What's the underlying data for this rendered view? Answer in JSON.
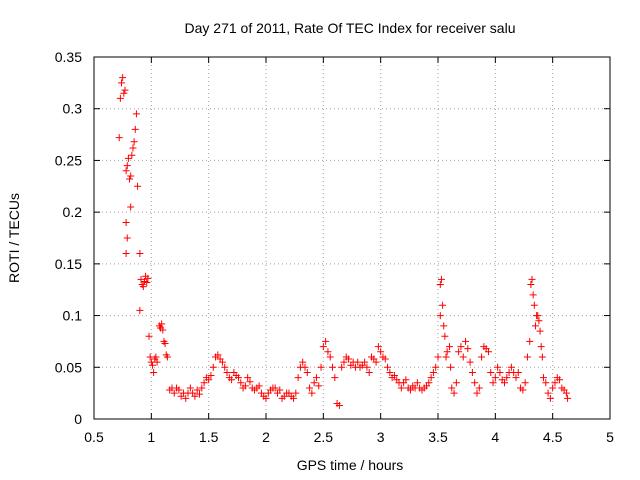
{
  "chart_data": {
    "type": "scatter",
    "title": "Day 271 of 2011, Rate Of TEC Index for receiver salu",
    "xlabel": "GPS time / hours",
    "ylabel": "ROTI / TECUs",
    "xlim": [
      0.5,
      5
    ],
    "ylim": [
      0,
      0.35
    ],
    "x_ticks": [
      0.5,
      1,
      1.5,
      2,
      2.5,
      3,
      3.5,
      4,
      4.5,
      5
    ],
    "x_tick_labels": [
      "0.5",
      "1",
      "1.5",
      "2",
      "2.5",
      "3",
      "3.5",
      "4",
      "4.5",
      "5"
    ],
    "y_ticks": [
      0,
      0.05,
      0.1,
      0.15,
      0.2,
      0.25,
      0.3,
      0.35
    ],
    "y_tick_labels": [
      "0",
      "0.05",
      "0.1",
      "0.15",
      "0.2",
      "0.25",
      "0.3",
      "0.35"
    ],
    "grid": true,
    "marker": "plus",
    "marker_color": "#ff0000",
    "series": [
      {
        "name": "ROTI",
        "points": [
          [
            0.72,
            0.272
          ],
          [
            0.73,
            0.31
          ],
          [
            0.74,
            0.325
          ],
          [
            0.75,
            0.33
          ],
          [
            0.76,
            0.315
          ],
          [
            0.77,
            0.318
          ],
          [
            0.78,
            0.24
          ],
          [
            0.79,
            0.245
          ],
          [
            0.8,
            0.252
          ],
          [
            0.81,
            0.232
          ],
          [
            0.82,
            0.235
          ],
          [
            0.83,
            0.255
          ],
          [
            0.84,
            0.262
          ],
          [
            0.85,
            0.268
          ],
          [
            0.86,
            0.28
          ],
          [
            0.87,
            0.295
          ],
          [
            0.88,
            0.225
          ],
          [
            0.78,
            0.19
          ],
          [
            0.79,
            0.175
          ],
          [
            0.82,
            0.205
          ],
          [
            0.78,
            0.16
          ],
          [
            0.9,
            0.16
          ],
          [
            0.9,
            0.105
          ],
          [
            0.91,
            0.135
          ],
          [
            0.92,
            0.13
          ],
          [
            0.93,
            0.128
          ],
          [
            0.94,
            0.133
          ],
          [
            0.95,
            0.138
          ],
          [
            0.96,
            0.132
          ],
          [
            0.97,
            0.136
          ],
          [
            0.98,
            0.08
          ],
          [
            0.99,
            0.06
          ],
          [
            1.0,
            0.055
          ],
          [
            1.01,
            0.052
          ],
          [
            1.02,
            0.045
          ],
          [
            1.03,
            0.058
          ],
          [
            1.04,
            0.06
          ],
          [
            1.05,
            0.055
          ],
          [
            1.07,
            0.09
          ],
          [
            1.08,
            0.088
          ],
          [
            1.09,
            0.092
          ],
          [
            1.1,
            0.086
          ],
          [
            1.11,
            0.075
          ],
          [
            1.12,
            0.073
          ],
          [
            1.13,
            0.062
          ],
          [
            1.14,
            0.06
          ],
          [
            1.16,
            0.028
          ],
          [
            1.18,
            0.03
          ],
          [
            1.2,
            0.025
          ],
          [
            1.22,
            0.03
          ],
          [
            1.24,
            0.028
          ],
          [
            1.26,
            0.022
          ],
          [
            1.28,
            0.025
          ],
          [
            1.3,
            0.02
          ],
          [
            1.32,
            0.025
          ],
          [
            1.34,
            0.03
          ],
          [
            1.36,
            0.025
          ],
          [
            1.38,
            0.022
          ],
          [
            1.4,
            0.028
          ],
          [
            1.42,
            0.024
          ],
          [
            1.44,
            0.03
          ],
          [
            1.46,
            0.035
          ],
          [
            1.48,
            0.04
          ],
          [
            1.5,
            0.038
          ],
          [
            1.52,
            0.042
          ],
          [
            1.54,
            0.05
          ],
          [
            1.56,
            0.06
          ],
          [
            1.58,
            0.062
          ],
          [
            1.6,
            0.058
          ],
          [
            1.62,
            0.055
          ],
          [
            1.64,
            0.05
          ],
          [
            1.66,
            0.045
          ],
          [
            1.68,
            0.04
          ],
          [
            1.7,
            0.038
          ],
          [
            1.72,
            0.045
          ],
          [
            1.74,
            0.042
          ],
          [
            1.76,
            0.04
          ],
          [
            1.78,
            0.035
          ],
          [
            1.8,
            0.03
          ],
          [
            1.82,
            0.032
          ],
          [
            1.84,
            0.04
          ],
          [
            1.86,
            0.036
          ],
          [
            1.88,
            0.03
          ],
          [
            1.9,
            0.028
          ],
          [
            1.92,
            0.03
          ],
          [
            1.94,
            0.032
          ],
          [
            1.96,
            0.025
          ],
          [
            1.98,
            0.022
          ],
          [
            2.0,
            0.02
          ],
          [
            2.02,
            0.025
          ],
          [
            2.04,
            0.028
          ],
          [
            2.06,
            0.03
          ],
          [
            2.08,
            0.03
          ],
          [
            2.1,
            0.025
          ],
          [
            2.12,
            0.028
          ],
          [
            2.14,
            0.02
          ],
          [
            2.16,
            0.022
          ],
          [
            2.18,
            0.025
          ],
          [
            2.2,
            0.025
          ],
          [
            2.22,
            0.022
          ],
          [
            2.24,
            0.02
          ],
          [
            2.26,
            0.025
          ],
          [
            2.28,
            0.04
          ],
          [
            2.3,
            0.05
          ],
          [
            2.32,
            0.055
          ],
          [
            2.34,
            0.05
          ],
          [
            2.36,
            0.045
          ],
          [
            2.38,
            0.03
          ],
          [
            2.4,
            0.025
          ],
          [
            2.42,
            0.035
          ],
          [
            2.44,
            0.04
          ],
          [
            2.46,
            0.032
          ],
          [
            2.48,
            0.05
          ],
          [
            2.5,
            0.07
          ],
          [
            2.52,
            0.075
          ],
          [
            2.54,
            0.065
          ],
          [
            2.56,
            0.06
          ],
          [
            2.58,
            0.05
          ],
          [
            2.6,
            0.04
          ],
          [
            2.62,
            0.015
          ],
          [
            2.64,
            0.013
          ],
          [
            2.66,
            0.05
          ],
          [
            2.68,
            0.055
          ],
          [
            2.7,
            0.06
          ],
          [
            2.72,
            0.058
          ],
          [
            2.74,
            0.052
          ],
          [
            2.76,
            0.055
          ],
          [
            2.78,
            0.05
          ],
          [
            2.8,
            0.055
          ],
          [
            2.82,
            0.05
          ],
          [
            2.84,
            0.052
          ],
          [
            2.86,
            0.055
          ],
          [
            2.88,
            0.05
          ],
          [
            2.9,
            0.045
          ],
          [
            2.92,
            0.06
          ],
          [
            2.94,
            0.058
          ],
          [
            2.96,
            0.055
          ],
          [
            2.98,
            0.07
          ],
          [
            3.0,
            0.065
          ],
          [
            3.02,
            0.06
          ],
          [
            3.04,
            0.058
          ],
          [
            3.06,
            0.05
          ],
          [
            3.08,
            0.045
          ],
          [
            3.1,
            0.04
          ],
          [
            3.12,
            0.042
          ],
          [
            3.14,
            0.038
          ],
          [
            3.16,
            0.035
          ],
          [
            3.18,
            0.03
          ],
          [
            3.2,
            0.035
          ],
          [
            3.22,
            0.038
          ],
          [
            3.24,
            0.03
          ],
          [
            3.26,
            0.028
          ],
          [
            3.28,
            0.032
          ],
          [
            3.3,
            0.03
          ],
          [
            3.32,
            0.035
          ],
          [
            3.34,
            0.03
          ],
          [
            3.36,
            0.028
          ],
          [
            3.38,
            0.03
          ],
          [
            3.4,
            0.032
          ],
          [
            3.42,
            0.035
          ],
          [
            3.44,
            0.04
          ],
          [
            3.46,
            0.045
          ],
          [
            3.48,
            0.05
          ],
          [
            3.5,
            0.06
          ],
          [
            3.52,
            0.13
          ],
          [
            3.53,
            0.135
          ],
          [
            3.54,
            0.11
          ],
          [
            3.52,
            0.1
          ],
          [
            3.55,
            0.09
          ],
          [
            3.56,
            0.08
          ],
          [
            3.57,
            0.06
          ],
          [
            3.58,
            0.065
          ],
          [
            3.6,
            0.07
          ],
          [
            3.61,
            0.05
          ],
          [
            3.62,
            0.03
          ],
          [
            3.64,
            0.025
          ],
          [
            3.66,
            0.035
          ],
          [
            3.68,
            0.065
          ],
          [
            3.7,
            0.07
          ],
          [
            3.72,
            0.06
          ],
          [
            3.74,
            0.075
          ],
          [
            3.76,
            0.068
          ],
          [
            3.78,
            0.055
          ],
          [
            3.8,
            0.045
          ],
          [
            3.82,
            0.035
          ],
          [
            3.84,
            0.025
          ],
          [
            3.86,
            0.03
          ],
          [
            3.88,
            0.06
          ],
          [
            3.9,
            0.07
          ],
          [
            3.92,
            0.068
          ],
          [
            3.94,
            0.065
          ],
          [
            3.96,
            0.045
          ],
          [
            3.98,
            0.035
          ],
          [
            4.0,
            0.04
          ],
          [
            4.02,
            0.05
          ],
          [
            4.04,
            0.045
          ],
          [
            4.06,
            0.038
          ],
          [
            4.08,
            0.035
          ],
          [
            4.1,
            0.04
          ],
          [
            4.12,
            0.045
          ],
          [
            4.14,
            0.05
          ],
          [
            4.16,
            0.045
          ],
          [
            4.18,
            0.04
          ],
          [
            4.2,
            0.045
          ],
          [
            4.22,
            0.03
          ],
          [
            4.24,
            0.028
          ],
          [
            4.26,
            0.035
          ],
          [
            4.28,
            0.06
          ],
          [
            4.3,
            0.075
          ],
          [
            4.31,
            0.13
          ],
          [
            4.32,
            0.135
          ],
          [
            4.33,
            0.12
          ],
          [
            4.34,
            0.11
          ],
          [
            4.35,
            0.09
          ],
          [
            4.36,
            0.1
          ],
          [
            4.37,
            0.1
          ],
          [
            4.38,
            0.095
          ],
          [
            4.39,
            0.085
          ],
          [
            4.4,
            0.07
          ],
          [
            4.41,
            0.06
          ],
          [
            4.42,
            0.04
          ],
          [
            4.44,
            0.035
          ],
          [
            4.46,
            0.025
          ],
          [
            4.48,
            0.02
          ],
          [
            4.5,
            0.03
          ],
          [
            4.52,
            0.035
          ],
          [
            4.54,
            0.04
          ],
          [
            4.56,
            0.038
          ],
          [
            4.58,
            0.03
          ],
          [
            4.6,
            0.028
          ],
          [
            4.62,
            0.025
          ],
          [
            4.63,
            0.02
          ]
        ]
      }
    ]
  }
}
